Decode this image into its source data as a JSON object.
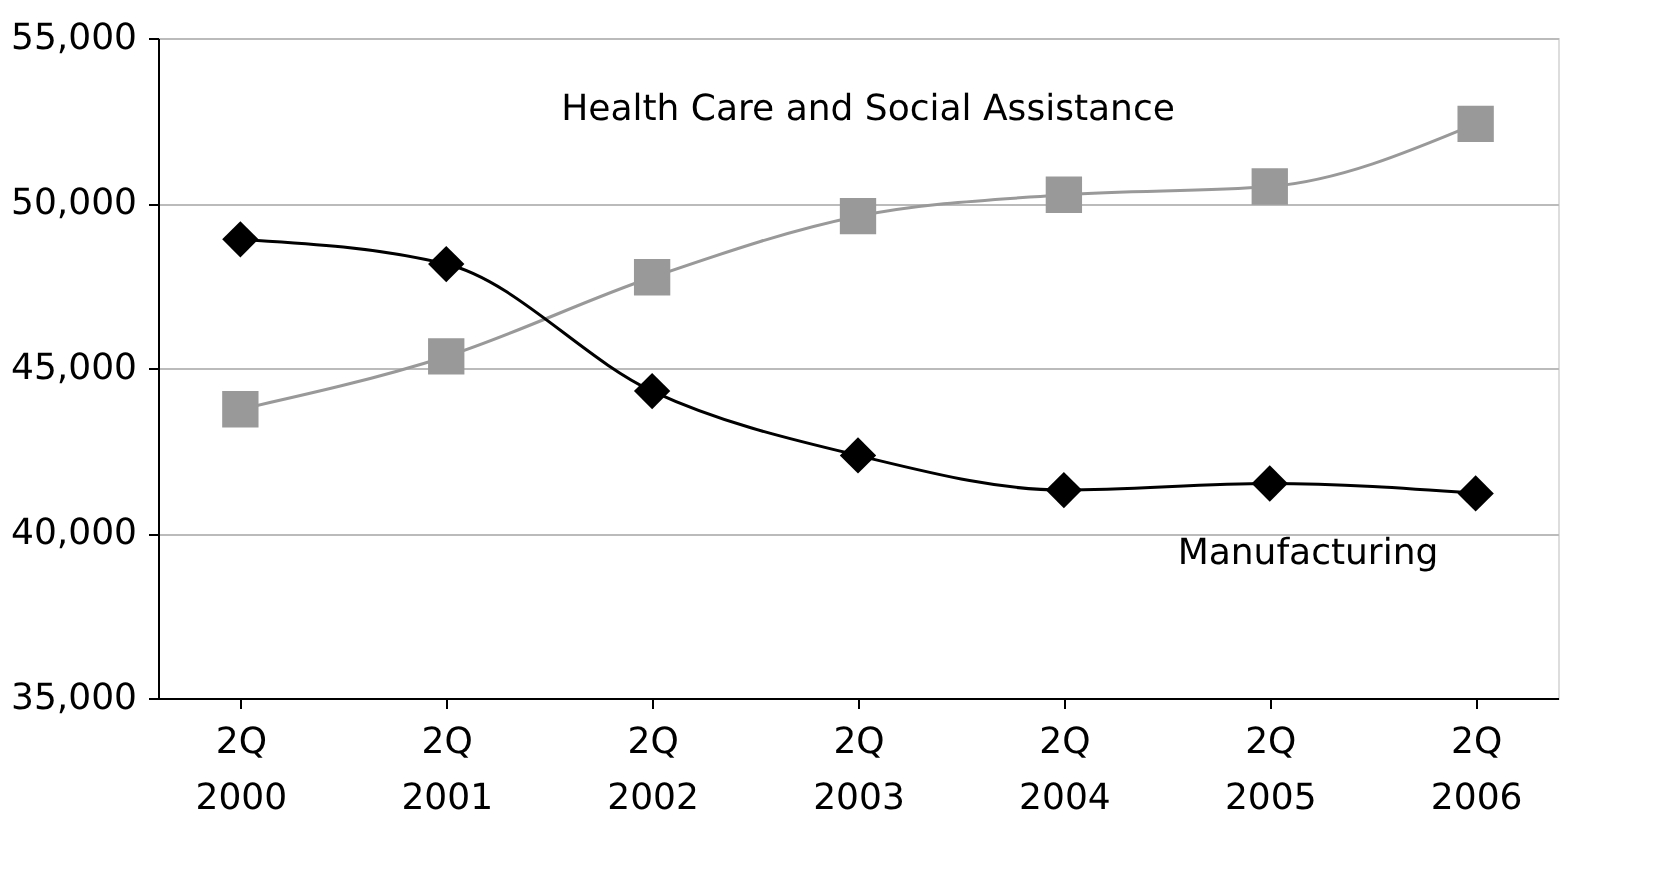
{
  "chart_data": {
    "type": "line",
    "categories": [
      "2Q 2000",
      "2Q 2001",
      "2Q 2002",
      "2Q 2003",
      "2Q 2004",
      "2Q 2005",
      "2Q 2006"
    ],
    "series": [
      {
        "name": "Health Care and Social Assistance",
        "color": "#999999",
        "marker": "square",
        "values": [
          43750,
          45350,
          47750,
          49600,
          50250,
          50500,
          52400
        ]
      },
      {
        "name": "Manufacturing",
        "color": "#000000",
        "marker": "diamond",
        "values": [
          48900,
          48150,
          44300,
          42350,
          41300,
          41500,
          41200
        ]
      }
    ],
    "ylim": [
      35000,
      55000
    ],
    "yticks": [
      {
        "value": 35000,
        "label": "35,000"
      },
      {
        "value": 40000,
        "label": "40,000"
      },
      {
        "value": 45000,
        "label": "45,000"
      },
      {
        "value": 50000,
        "label": "50,000"
      },
      {
        "value": 55000,
        "label": "55,000"
      }
    ],
    "grid": "y",
    "legend": false
  }
}
